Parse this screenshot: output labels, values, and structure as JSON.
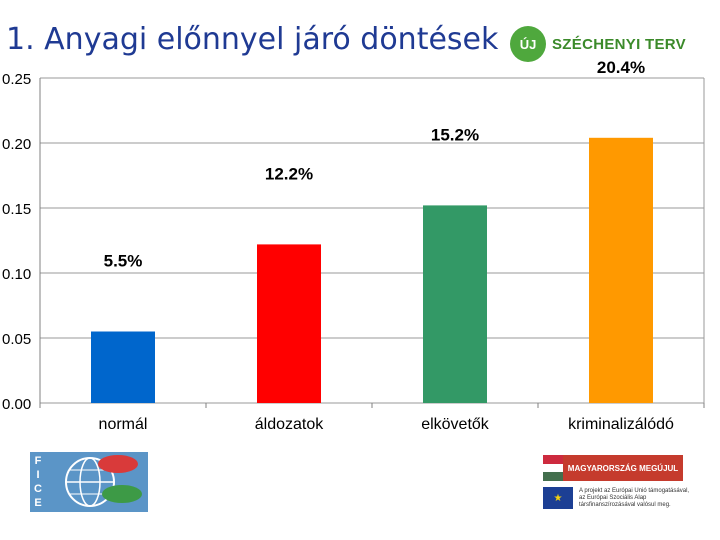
{
  "header": {
    "title": "1. Anyagi előnnyel járó döntések"
  },
  "brand": {
    "badge": "ÚJ",
    "name": "SZÉCHENYI TERV"
  },
  "logos": {
    "fice_letters": [
      "F",
      "I",
      "C",
      "E"
    ],
    "hungary_banner": "MAGYARORSZÁG MEGÚJUL",
    "eu_text": "A projekt az Európai Unió támogatásával, az Európai Szociális Alap társfinanszírozásával valósul meg."
  },
  "colors": {
    "title": "#1f3a93",
    "grid": "#9a9a9a"
  },
  "chart_data": {
    "type": "bar",
    "categories": [
      "normál",
      "áldozatok",
      "elkövetők",
      "kriminalizálódó"
    ],
    "values": [
      0.055,
      0.122,
      0.152,
      0.204
    ],
    "data_labels": [
      "5.5%",
      "12.2%",
      "15.2%",
      "20.4%"
    ],
    "colors": [
      "#0066cc",
      "#ff0000",
      "#339966",
      "#ff9900"
    ],
    "ylim": [
      0,
      0.25
    ],
    "yticks": [
      "0.00",
      "0.05",
      "0.10",
      "0.15",
      "0.20",
      "0.25"
    ],
    "grid": true,
    "title": "",
    "xlabel": "",
    "ylabel": ""
  }
}
